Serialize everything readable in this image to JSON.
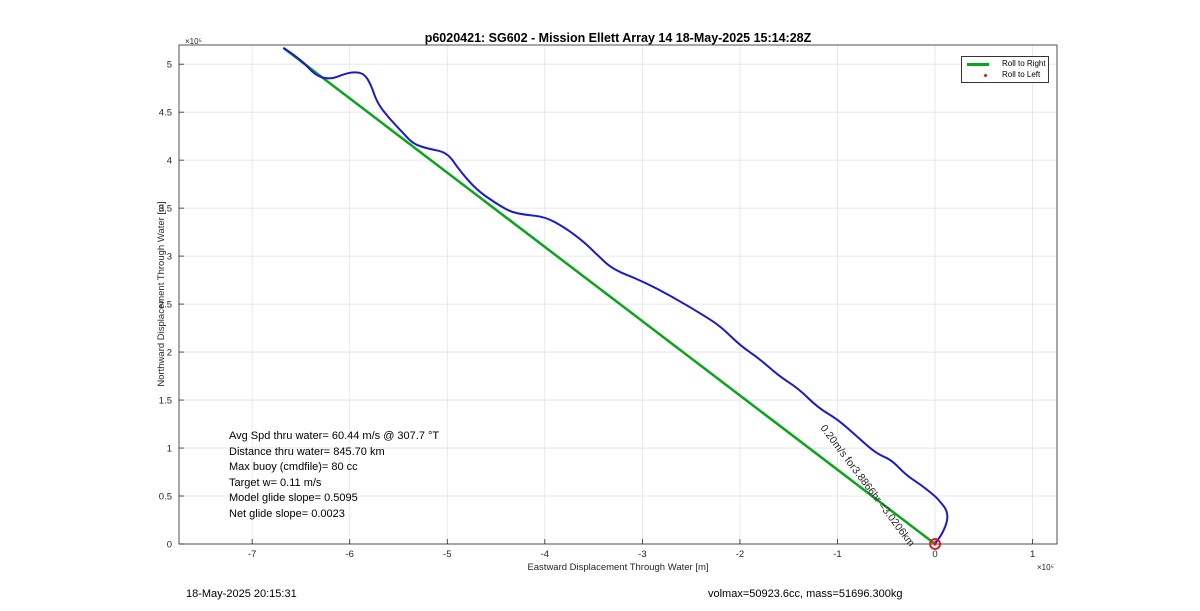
{
  "chart_data": {
    "type": "line",
    "title": "p6020421: SG602 - Mission Ellett Array 14 18-May-2025 15:14:28Z",
    "xlabel": "Eastward Displacement Through Water [m]",
    "ylabel": "Northward Displacement Through Water [m]",
    "x_exponent": "×10⁵",
    "y_exponent": "×10⁵",
    "xlim": [
      -7.75,
      1.25
    ],
    "ylim": [
      0,
      5.2
    ],
    "x_ticks": [
      -7,
      -6,
      -5,
      -4,
      -3,
      -2,
      -1,
      0,
      1
    ],
    "y_ticks": [
      0,
      0.5,
      1,
      1.5,
      2,
      2.5,
      3,
      3.5,
      4,
      4.5,
      5
    ],
    "x_ticklabels": [
      "-7",
      "-6",
      "-5",
      "-4",
      "-3",
      "-2",
      "-1",
      "0",
      "1"
    ],
    "y_ticklabels": [
      "0",
      "0.5",
      "1",
      "1.5",
      "2",
      "2.5",
      "3",
      "3.5",
      "4",
      "4.5",
      "5"
    ],
    "grid": true,
    "legend_position": "top-right",
    "series": [
      {
        "name": "Roll to Right",
        "color": "#0aa51b",
        "x": [
          0.0,
          -6.68
        ],
        "y": [
          0.0,
          5.17
        ]
      },
      {
        "name": "Roll to Left",
        "color": "#e0101a",
        "x": [
          0.0
        ],
        "y": [
          0.0
        ]
      },
      {
        "name": "",
        "color": "#1a1acc",
        "x": [
          -6.68,
          -6.5,
          -6.35,
          -6.2,
          -6.05,
          -5.95,
          -5.85,
          -5.78,
          -5.72,
          -5.6,
          -5.45,
          -5.35,
          -5.2,
          -5.0,
          -4.88,
          -4.7,
          -4.5,
          -4.35,
          -4.2,
          -4.0,
          -3.8,
          -3.6,
          -3.45,
          -3.3,
          -3.0,
          -2.7,
          -2.4,
          -2.2,
          -2.0,
          -1.8,
          -1.6,
          -1.4,
          -1.2,
          -1.0,
          -0.8,
          -0.6,
          -0.45,
          -0.3,
          -0.15,
          0.0,
          0.07,
          0.12,
          0.13,
          0.08,
          0.02,
          0.0
        ],
        "y": [
          5.17,
          5.05,
          4.88,
          4.84,
          4.9,
          4.92,
          4.9,
          4.78,
          4.6,
          4.44,
          4.28,
          4.17,
          4.12,
          4.08,
          3.9,
          3.69,
          3.55,
          3.46,
          3.43,
          3.41,
          3.3,
          3.15,
          3.0,
          2.86,
          2.74,
          2.58,
          2.4,
          2.27,
          2.07,
          1.93,
          1.75,
          1.62,
          1.42,
          1.3,
          1.12,
          0.94,
          0.88,
          0.72,
          0.62,
          0.5,
          0.42,
          0.35,
          0.25,
          0.12,
          0.03,
          0.0
        ]
      }
    ],
    "annotations": [
      "Avg Spd thru water= 60.44 m/s @ 307.7 °T",
      "Distance thru water= 845.70 km",
      "Max buoy (cmdfile)= 80 cc",
      "Target w= 0.11 m/s",
      "Model glide slope= 0.5095",
      "Net glide slope= 0.0023"
    ],
    "rotated_annotation": "0.20m/s for3.8866hr =3.0206km"
  },
  "footer": {
    "timestamp": "18-May-2025 20:15:31",
    "summary": "volmax=50923.6cc, mass=51696.300kg"
  }
}
